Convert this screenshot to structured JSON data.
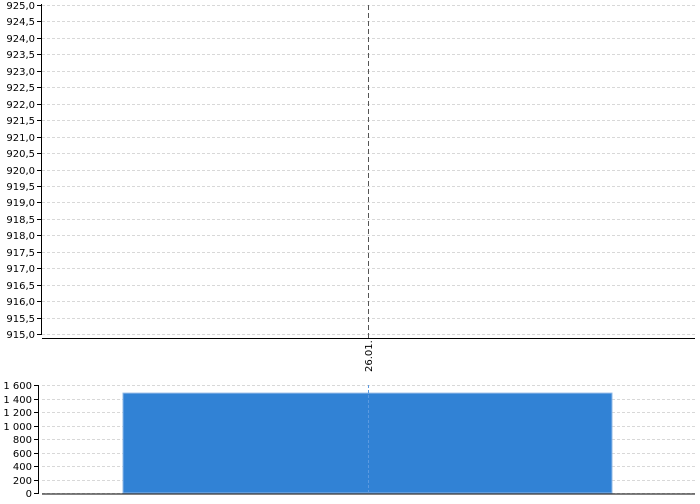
{
  "chart_data": [
    {
      "type": "line",
      "title": "",
      "xlabel": "",
      "ylabel": "",
      "ylim": [
        915.0,
        925.0
      ],
      "y_ticks": [
        "915,0",
        "915,5",
        "916,0",
        "916,5",
        "917,0",
        "917,5",
        "918,0",
        "918,5",
        "919,0",
        "919,5",
        "920,0",
        "920,5",
        "921,0",
        "921,5",
        "922,0",
        "922,5",
        "923,0",
        "923,5",
        "924,0",
        "924,5",
        "925,0"
      ],
      "x_ticks": [
        "26.01."
      ],
      "marker_line": "26.01.",
      "grid": true,
      "series": []
    },
    {
      "type": "bar",
      "title": "",
      "xlabel": "",
      "ylabel": "",
      "ylim": [
        0,
        1600
      ],
      "y_ticks": [
        "0",
        "200",
        "400",
        "600",
        "800",
        "1 000",
        "1 200",
        "1 400",
        "1 600"
      ],
      "categories": [
        "26.01."
      ],
      "values": [
        1480
      ],
      "grid": true,
      "color": "#3182d5"
    }
  ]
}
